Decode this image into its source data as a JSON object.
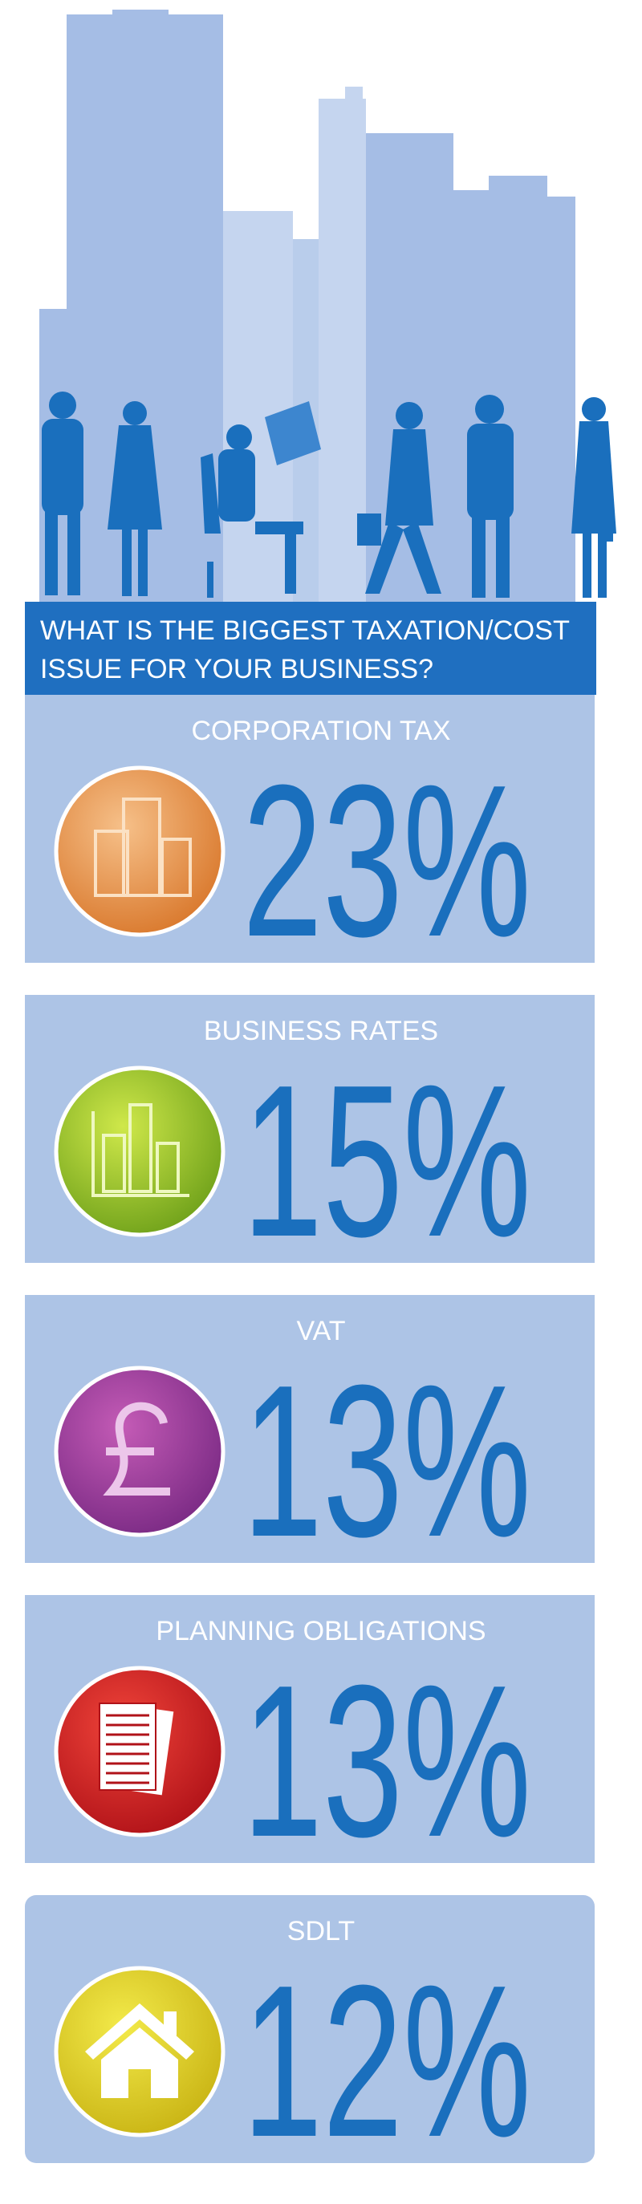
{
  "title_lines": [
    "WHAT IS THE BIGGEST TAXATION/COST",
    "ISSUE FOR YOUR BUSINESS?"
  ],
  "items": [
    {
      "label": "CORPORATION TAX",
      "value": "23%"
    },
    {
      "label": "BUSINESS RATES",
      "value": "15%"
    },
    {
      "label": "VAT",
      "value": "13%"
    },
    {
      "label": "PLANNING OBLIGATIONS",
      "value": "13%"
    },
    {
      "label": "SDLT",
      "value": "12%"
    }
  ]
}
